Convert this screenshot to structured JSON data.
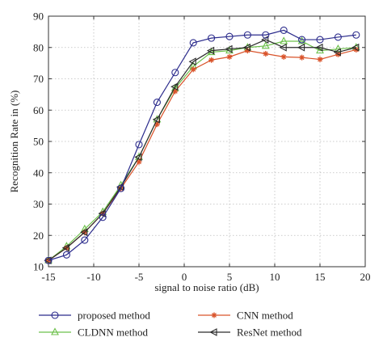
{
  "chart_data": {
    "type": "line",
    "title": "",
    "xlabel": "signal to noise ratio (dB)",
    "ylabel": "Recognition Rate in (%)",
    "xlim": [
      -15,
      20
    ],
    "ylim": [
      10,
      90
    ],
    "xticks": [
      -15,
      -10,
      -5,
      0,
      5,
      10,
      15,
      20
    ],
    "yticks": [
      10,
      20,
      30,
      40,
      50,
      60,
      70,
      80,
      90
    ],
    "grid": true,
    "legend_position": "below",
    "x": [
      -15,
      -13,
      -11,
      -9,
      -7,
      -5,
      -3,
      -1,
      1,
      3,
      5,
      7,
      9,
      11,
      13,
      15,
      17,
      19
    ],
    "series": [
      {
        "name": "proposed method",
        "color": "#2b2b8c",
        "marker": "circle",
        "values": [
          12,
          13.8,
          18.5,
          25.8,
          35,
          49,
          62.5,
          72,
          81.5,
          83,
          83.5,
          84,
          84,
          85.5,
          82.5,
          82.5,
          83.3,
          84
        ]
      },
      {
        "name": "CNN method",
        "color": "#d9532a",
        "marker": "star",
        "values": [
          12,
          16,
          21,
          27,
          35,
          43.5,
          55.5,
          66,
          73,
          76,
          77,
          79,
          78,
          77,
          76.8,
          76.2,
          77.8,
          79.3
        ]
      },
      {
        "name": "CLDNN method",
        "color": "#6cc04a",
        "marker": "triangle-up",
        "values": [
          12,
          16.5,
          22,
          27.5,
          36,
          45,
          57,
          67,
          74,
          78.5,
          79,
          80,
          80.5,
          82,
          82,
          79,
          79.5,
          80
        ]
      },
      {
        "name": "ResNet method",
        "color": "#2a2a2a",
        "marker": "triangle-left",
        "values": [
          12,
          16,
          21,
          27,
          35.5,
          45,
          57,
          67.5,
          75.5,
          79,
          79.5,
          80,
          82.5,
          80,
          80,
          80,
          78.5,
          80
        ]
      }
    ]
  }
}
